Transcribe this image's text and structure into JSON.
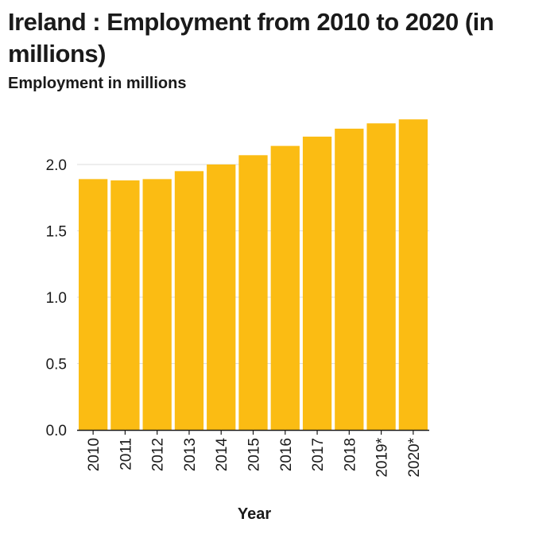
{
  "chart_data": {
    "type": "bar",
    "title": "Ireland : Employment from 2010 to 2020 (in millions)",
    "ylabel": "Employment in millions",
    "xlabel": "Year",
    "categories": [
      "2010",
      "2011",
      "2012",
      "2013",
      "2014",
      "2015",
      "2016",
      "2017",
      "2018",
      "2019*",
      "2020*"
    ],
    "values": [
      1.89,
      1.88,
      1.89,
      1.95,
      2.0,
      2.07,
      2.14,
      2.21,
      2.27,
      2.31,
      2.34
    ],
    "ylim": [
      0,
      2.4
    ],
    "yticks": [
      "0.0",
      "0.5",
      "1.0",
      "1.5",
      "2.0"
    ],
    "grid": true,
    "bar_color": "#FBBC13",
    "grid_color": "#dddddd"
  }
}
